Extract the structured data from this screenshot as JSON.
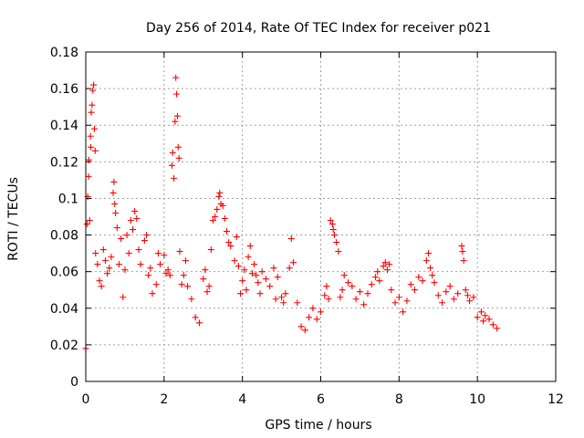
{
  "chart_data": {
    "type": "scatter",
    "title": "Day 256 of 2014, Rate Of TEC Index for receiver p021",
    "xlabel": "GPS time / hours",
    "ylabel": "ROTI / TECUs",
    "xlim": [
      0,
      12
    ],
    "ylim": [
      0,
      0.18
    ],
    "xticks": [
      0,
      2,
      4,
      6,
      8,
      10,
      12
    ],
    "yticks": [
      0,
      0.02,
      0.04,
      0.06,
      0.08,
      0.1,
      0.12,
      0.14,
      0.16,
      0.18
    ],
    "xtick_labels": [
      "0",
      "2",
      "4",
      "6",
      "8",
      "10",
      "12"
    ],
    "ytick_labels": [
      "0",
      "0.02",
      "0.04",
      "0.06",
      "0.08",
      "0.1",
      "0.12",
      "0.14",
      "0.16",
      "0.18"
    ],
    "grid": true,
    "marker": "plus",
    "marker_color": "#ff0000",
    "series": [
      {
        "name": "ROTI",
        "points": [
          [
            0.0,
            0.018
          ],
          [
            0.03,
            0.086
          ],
          [
            0.05,
            0.101
          ],
          [
            0.07,
            0.112
          ],
          [
            0.08,
            0.121
          ],
          [
            0.1,
            0.088
          ],
          [
            0.12,
            0.134
          ],
          [
            0.13,
            0.128
          ],
          [
            0.14,
            0.147
          ],
          [
            0.16,
            0.151
          ],
          [
            0.18,
            0.159
          ],
          [
            0.2,
            0.162
          ],
          [
            0.22,
            0.138
          ],
          [
            0.24,
            0.126
          ],
          [
            0.25,
            0.07
          ],
          [
            0.3,
            0.064
          ],
          [
            0.35,
            0.055
          ],
          [
            0.4,
            0.052
          ],
          [
            0.45,
            0.072
          ],
          [
            0.5,
            0.066
          ],
          [
            0.55,
            0.059
          ],
          [
            0.6,
            0.062
          ],
          [
            0.65,
            0.068
          ],
          [
            0.7,
            0.103
          ],
          [
            0.72,
            0.109
          ],
          [
            0.74,
            0.097
          ],
          [
            0.76,
            0.092
          ],
          [
            0.8,
            0.084
          ],
          [
            0.85,
            0.064
          ],
          [
            0.9,
            0.078
          ],
          [
            0.95,
            0.046
          ],
          [
            1.0,
            0.061
          ],
          [
            1.05,
            0.08
          ],
          [
            1.1,
            0.07
          ],
          [
            1.15,
            0.088
          ],
          [
            1.2,
            0.083
          ],
          [
            1.25,
            0.093
          ],
          [
            1.3,
            0.089
          ],
          [
            1.35,
            0.072
          ],
          [
            1.4,
            0.064
          ],
          [
            1.5,
            0.077
          ],
          [
            1.55,
            0.08
          ],
          [
            1.6,
            0.058
          ],
          [
            1.65,
            0.062
          ],
          [
            1.7,
            0.048
          ],
          [
            1.8,
            0.053
          ],
          [
            1.85,
            0.07
          ],
          [
            1.9,
            0.064
          ],
          [
            2.0,
            0.069
          ],
          [
            2.05,
            0.059
          ],
          [
            2.1,
            0.061
          ],
          [
            2.15,
            0.058
          ],
          [
            2.2,
            0.118
          ],
          [
            2.22,
            0.125
          ],
          [
            2.25,
            0.111
          ],
          [
            2.28,
            0.142
          ],
          [
            2.3,
            0.166
          ],
          [
            2.32,
            0.157
          ],
          [
            2.34,
            0.145
          ],
          [
            2.36,
            0.128
          ],
          [
            2.38,
            0.122
          ],
          [
            2.4,
            0.071
          ],
          [
            2.45,
            0.053
          ],
          [
            2.5,
            0.058
          ],
          [
            2.55,
            0.066
          ],
          [
            2.6,
            0.052
          ],
          [
            2.7,
            0.045
          ],
          [
            2.8,
            0.035
          ],
          [
            2.9,
            0.032
          ],
          [
            3.0,
            0.056
          ],
          [
            3.05,
            0.061
          ],
          [
            3.1,
            0.049
          ],
          [
            3.15,
            0.052
          ],
          [
            3.2,
            0.072
          ],
          [
            3.25,
            0.088
          ],
          [
            3.3,
            0.09
          ],
          [
            3.35,
            0.094
          ],
          [
            3.4,
            0.101
          ],
          [
            3.42,
            0.103
          ],
          [
            3.45,
            0.097
          ],
          [
            3.5,
            0.096
          ],
          [
            3.55,
            0.089
          ],
          [
            3.6,
            0.082
          ],
          [
            3.65,
            0.076
          ],
          [
            3.7,
            0.074
          ],
          [
            3.8,
            0.066
          ],
          [
            3.85,
            0.079
          ],
          [
            3.9,
            0.063
          ],
          [
            3.95,
            0.048
          ],
          [
            4.0,
            0.055
          ],
          [
            4.05,
            0.061
          ],
          [
            4.1,
            0.05
          ],
          [
            4.15,
            0.068
          ],
          [
            4.2,
            0.074
          ],
          [
            4.25,
            0.059
          ],
          [
            4.3,
            0.064
          ],
          [
            4.35,
            0.058
          ],
          [
            4.4,
            0.054
          ],
          [
            4.45,
            0.048
          ],
          [
            4.5,
            0.06
          ],
          [
            4.6,
            0.056
          ],
          [
            4.7,
            0.052
          ],
          [
            4.8,
            0.062
          ],
          [
            4.85,
            0.045
          ],
          [
            4.9,
            0.057
          ],
          [
            5.0,
            0.046
          ],
          [
            5.05,
            0.043
          ],
          [
            5.1,
            0.048
          ],
          [
            5.2,
            0.062
          ],
          [
            5.25,
            0.078
          ],
          [
            5.3,
            0.065
          ],
          [
            5.4,
            0.043
          ],
          [
            5.5,
            0.03
          ],
          [
            5.6,
            0.028
          ],
          [
            5.7,
            0.035
          ],
          [
            5.8,
            0.04
          ],
          [
            5.9,
            0.034
          ],
          [
            6.0,
            0.038
          ],
          [
            6.1,
            0.047
          ],
          [
            6.15,
            0.052
          ],
          [
            6.2,
            0.045
          ],
          [
            6.25,
            0.088
          ],
          [
            6.3,
            0.086
          ],
          [
            6.32,
            0.083
          ],
          [
            6.35,
            0.08
          ],
          [
            6.4,
            0.076
          ],
          [
            6.45,
            0.071
          ],
          [
            6.5,
            0.046
          ],
          [
            6.55,
            0.05
          ],
          [
            6.6,
            0.058
          ],
          [
            6.7,
            0.054
          ],
          [
            6.8,
            0.052
          ],
          [
            6.9,
            0.045
          ],
          [
            7.0,
            0.049
          ],
          [
            7.1,
            0.042
          ],
          [
            7.2,
            0.048
          ],
          [
            7.3,
            0.053
          ],
          [
            7.4,
            0.057
          ],
          [
            7.45,
            0.06
          ],
          [
            7.5,
            0.055
          ],
          [
            7.6,
            0.063
          ],
          [
            7.65,
            0.065
          ],
          [
            7.7,
            0.061
          ],
          [
            7.75,
            0.064
          ],
          [
            7.8,
            0.05
          ],
          [
            7.9,
            0.043
          ],
          [
            8.0,
            0.046
          ],
          [
            8.1,
            0.038
          ],
          [
            8.2,
            0.044
          ],
          [
            8.3,
            0.053
          ],
          [
            8.4,
            0.05
          ],
          [
            8.5,
            0.057
          ],
          [
            8.6,
            0.055
          ],
          [
            8.7,
            0.066
          ],
          [
            8.75,
            0.07
          ],
          [
            8.8,
            0.062
          ],
          [
            8.85,
            0.058
          ],
          [
            8.9,
            0.054
          ],
          [
            9.0,
            0.047
          ],
          [
            9.1,
            0.043
          ],
          [
            9.2,
            0.049
          ],
          [
            9.3,
            0.052
          ],
          [
            9.4,
            0.045
          ],
          [
            9.5,
            0.048
          ],
          [
            9.6,
            0.074
          ],
          [
            9.62,
            0.071
          ],
          [
            9.65,
            0.066
          ],
          [
            9.7,
            0.05
          ],
          [
            9.75,
            0.047
          ],
          [
            9.8,
            0.044
          ],
          [
            9.9,
            0.046
          ],
          [
            10.0,
            0.035
          ],
          [
            10.1,
            0.038
          ],
          [
            10.15,
            0.033
          ],
          [
            10.2,
            0.036
          ],
          [
            10.3,
            0.034
          ],
          [
            10.4,
            0.031
          ],
          [
            10.5,
            0.029
          ]
        ]
      }
    ]
  }
}
